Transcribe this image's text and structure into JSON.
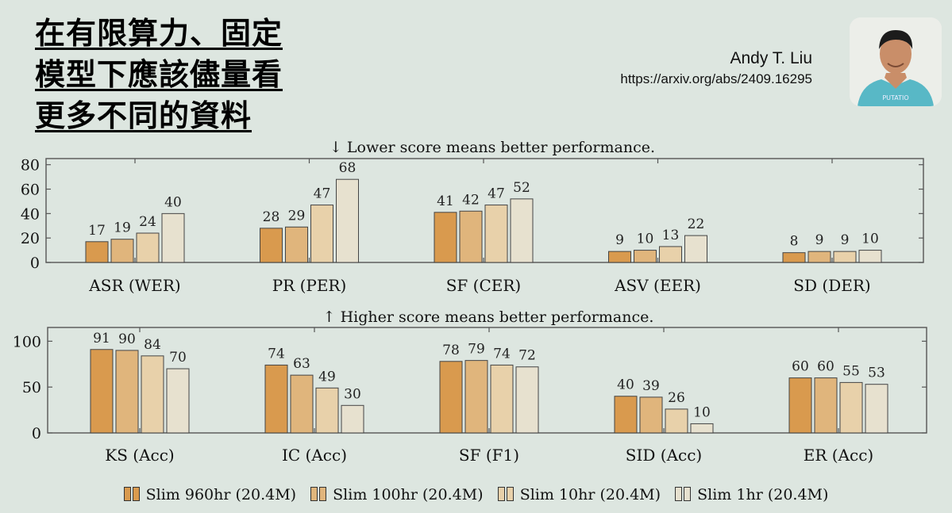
{
  "slide": {
    "title": "在有限算力、固定模型下應該儘量看更多不同的資料",
    "author_name": "Andy T. Liu",
    "author_url": "https://arxiv.org/abs/2409.16295"
  },
  "colors": {
    "background": "#dde6e0",
    "series": [
      "#d99a4e",
      "#e0b57c",
      "#e8d1aa",
      "#e7e1cf"
    ]
  },
  "chart_data": [
    {
      "type": "bar",
      "title": "↓ Lower score means better performance.",
      "categories": [
        "ASR (WER)",
        "PR (PER)",
        "SF (CER)",
        "ASV (EER)",
        "SD (DER)"
      ],
      "series": [
        {
          "name": "Slim 960hr (20.4M)",
          "values": [
            17,
            28,
            41,
            9,
            8
          ]
        },
        {
          "name": "Slim 100hr (20.4M)",
          "values": [
            19,
            29,
            42,
            10,
            9
          ]
        },
        {
          "name": "Slim 10hr (20.4M)",
          "values": [
            24,
            47,
            47,
            13,
            9
          ]
        },
        {
          "name": "Slim 1hr (20.4M)",
          "values": [
            40,
            68,
            52,
            22,
            10
          ]
        }
      ],
      "ylim": [
        0,
        85
      ],
      "yticks": [
        "0",
        "20",
        "40",
        "60",
        "80"
      ],
      "grid": false
    },
    {
      "type": "bar",
      "title": "↑ Higher score means better performance.",
      "categories": [
        "KS (Acc)",
        "IC (Acc)",
        "SF (F1)",
        "SID (Acc)",
        "ER (Acc)"
      ],
      "series": [
        {
          "name": "Slim 960hr (20.4M)",
          "values": [
            91,
            74,
            78,
            40,
            60
          ]
        },
        {
          "name": "Slim 100hr (20.4M)",
          "values": [
            90,
            63,
            79,
            39,
            60
          ]
        },
        {
          "name": "Slim 10hr (20.4M)",
          "values": [
            84,
            49,
            74,
            26,
            55
          ]
        },
        {
          "name": "Slim 1hr (20.4M)",
          "values": [
            70,
            30,
            72,
            10,
            53
          ]
        }
      ],
      "ylim": [
        0,
        115
      ],
      "yticks": [
        "0",
        "50",
        "100"
      ],
      "grid": false
    }
  ],
  "legend": {
    "placement": "bottom",
    "items": [
      "Slim 960hr (20.4M)",
      "Slim 100hr (20.4M)",
      "Slim 10hr (20.4M)",
      "Slim 1hr (20.4M)"
    ]
  }
}
